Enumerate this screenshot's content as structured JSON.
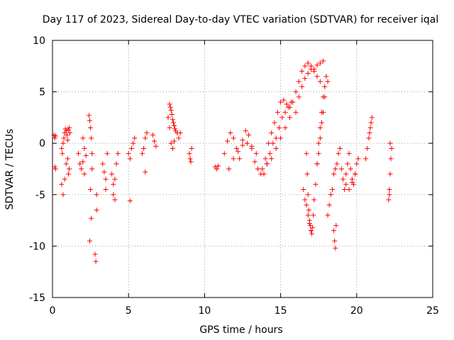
{
  "chart_data": {
    "type": "scatter",
    "title": "Day 117 of 2023, Sidereal Day-to-day VTEC variation (SDTVAR) for receiver iqal",
    "xlabel": "GPS time / hours",
    "ylabel": "SDTVAR / TECUs",
    "xlim": [
      0,
      25
    ],
    "ylim": [
      -15,
      10
    ],
    "xticks": [
      0,
      5,
      10,
      15,
      20,
      25
    ],
    "xtick_labels": [
      "0",
      "5",
      "10",
      "15",
      "20",
      "25"
    ],
    "yticks": [
      -15,
      -10,
      -5,
      0,
      5,
      10
    ],
    "ytick_labels": [
      "-15",
      "-10",
      "-5",
      "0",
      "5",
      "10"
    ],
    "grid": true,
    "marker": "plus",
    "color": "#ff0000",
    "series": [
      {
        "name": "SDTVAR",
        "x": [
          0.1,
          0.15,
          0.15,
          0.2,
          0.2,
          0.6,
          0.65,
          0.7,
          0.75,
          0.8,
          0.85,
          0.9,
          0.95,
          1.0,
          1.05,
          1.1,
          1.15,
          0.6,
          0.7,
          0.8,
          0.9,
          1.0,
          1.05,
          1.1,
          1.7,
          1.8,
          1.9,
          2.0,
          2.1,
          2.2,
          2.0,
          2.1,
          2.4,
          2.45,
          2.5,
          2.55,
          2.6,
          2.6,
          2.5,
          2.55,
          2.45,
          2.8,
          2.85,
          2.9,
          2.9,
          3.3,
          3.4,
          3.5,
          3.6,
          3.5,
          3.9,
          4.0,
          4.1,
          4.2,
          4.3,
          4.0,
          4.1,
          5.0,
          5.1,
          5.2,
          5.3,
          5.4,
          5.1,
          5.9,
          6.0,
          6.1,
          6.2,
          6.1,
          6.6,
          6.7,
          6.8,
          7.6,
          7.7,
          7.75,
          7.8,
          7.85,
          7.9,
          7.95,
          8.0,
          8.05,
          8.1,
          8.2,
          8.3,
          8.4,
          7.7,
          7.8,
          7.9,
          8.0,
          9.0,
          9.05,
          9.1,
          9.15,
          10.7,
          10.8,
          10.9,
          11.3,
          11.5,
          11.7,
          11.9,
          12.1,
          12.3,
          12.5,
          12.7,
          12.9,
          13.1,
          13.3,
          13.5,
          13.7,
          11.6,
          11.9,
          12.2,
          12.5,
          12.8,
          13.1,
          13.4,
          13.8,
          14.0,
          14.2,
          14.4,
          14.6,
          14.8,
          15.0,
          15.2,
          15.4,
          15.6,
          13.9,
          14.1,
          14.3,
          14.5,
          14.7,
          14.9,
          15.1,
          15.3,
          15.5,
          15.7,
          14.1,
          14.4,
          14.7,
          15.0,
          15.3,
          15.6,
          15.8,
          16.0,
          16.2,
          16.4,
          16.6,
          16.8,
          17.0,
          17.2,
          17.4,
          17.6,
          17.8,
          16.0,
          16.2,
          16.4,
          16.6,
          16.8,
          17.0,
          17.2,
          17.4,
          17.6,
          16.7,
          16.75,
          16.8,
          16.85,
          16.9,
          16.95,
          17.0,
          17.05,
          17.1,
          17.15,
          17.2,
          16.5,
          16.6,
          16.7,
          16.8,
          16.9,
          17.0,
          17.3,
          17.4,
          17.5,
          17.6,
          17.7,
          17.8,
          17.9,
          18.0,
          18.1,
          17.4,
          17.5,
          17.6,
          17.7,
          17.8,
          17.9,
          18.1,
          18.2,
          18.3,
          18.4,
          18.5,
          18.6,
          18.7,
          18.8,
          18.9,
          18.5,
          18.55,
          18.6,
          18.65,
          19.0,
          19.1,
          19.2,
          19.3,
          19.4,
          19.5,
          19.6,
          19.7,
          19.8,
          19.9,
          20.0,
          20.1,
          19.3,
          19.5,
          19.7,
          19.9,
          20.6,
          20.7,
          20.8,
          20.85,
          20.9,
          20.95,
          21.0,
          22.1,
          22.15,
          22.2,
          22.25,
          22.3,
          22.2,
          22.15
        ],
        "y": [
          0.8,
          0.5,
          -2.3,
          -2.5,
          0.7,
          -0.5,
          -1.0,
          0.0,
          0.5,
          1.0,
          1.4,
          1.2,
          0.8,
          0.3,
          1.3,
          1.5,
          1.0,
          -4.0,
          -5.0,
          -3.5,
          -2.0,
          -1.5,
          -3.0,
          -2.5,
          -1.0,
          -2.0,
          -2.5,
          -1.8,
          -0.5,
          -1.2,
          0.5,
          -3.0,
          2.7,
          2.2,
          1.5,
          0.5,
          -1.0,
          -2.5,
          -4.5,
          -7.3,
          -9.5,
          -10.8,
          -11.5,
          -6.5,
          -5.0,
          -2.0,
          -2.8,
          -3.5,
          -1.0,
          -4.5,
          -3.0,
          -4.0,
          -5.5,
          -2.0,
          -1.0,
          -5.0,
          -3.5,
          -1.0,
          -1.5,
          -0.5,
          0.0,
          0.5,
          -5.6,
          -1.0,
          -0.5,
          0.5,
          1.0,
          -2.8,
          0.8,
          0.2,
          -0.3,
          2.5,
          3.8,
          3.5,
          3.2,
          2.8,
          2.3,
          2.0,
          1.7,
          1.4,
          1.2,
          1.0,
          0.5,
          1.0,
          1.5,
          0.0,
          -0.5,
          0.2,
          -1.0,
          -1.5,
          -1.8,
          -0.5,
          -2.3,
          -2.5,
          -2.2,
          -1.0,
          0.2,
          1.0,
          0.5,
          -0.5,
          -1.5,
          0.3,
          1.2,
          0.8,
          -0.5,
          -1.8,
          -2.5,
          -3.0,
          -2.5,
          -1.5,
          -0.8,
          -0.2,
          0.0,
          -0.3,
          -1.0,
          -2.5,
          -1.5,
          0.0,
          1.0,
          2.0,
          3.0,
          4.0,
          4.2,
          3.8,
          3.5,
          -3.0,
          -2.0,
          -1.0,
          0.0,
          0.5,
          1.5,
          2.5,
          3.0,
          3.5,
          4.0,
          -2.0,
          -1.5,
          -0.5,
          0.5,
          1.5,
          2.5,
          4.0,
          5.0,
          6.0,
          7.0,
          7.5,
          7.8,
          7.5,
          7.2,
          7.6,
          7.8,
          8.0,
          3.0,
          4.5,
          5.5,
          6.3,
          6.8,
          7.2,
          7.0,
          6.5,
          6.0,
          -1.0,
          -3.0,
          -5.0,
          -6.5,
          -7.5,
          -8.0,
          -8.5,
          -8.8,
          -8.2,
          -7.0,
          -5.5,
          -4.5,
          -5.5,
          -6.0,
          -7.0,
          -7.8,
          -8.5,
          -4.0,
          -2.0,
          0.0,
          1.5,
          3.0,
          4.5,
          5.5,
          6.5,
          6.0,
          -2.0,
          -1.0,
          0.5,
          2.0,
          3.0,
          4.5,
          -7.0,
          -6.0,
          -5.0,
          -4.5,
          -3.0,
          -2.5,
          -2.0,
          -1.0,
          -0.5,
          -8.5,
          -9.5,
          -10.2,
          -8.0,
          -2.5,
          -3.5,
          -4.5,
          -3.0,
          -2.0,
          -1.0,
          -2.5,
          -3.5,
          -4.0,
          -3.0,
          -2.0,
          -1.5,
          -4.0,
          -4.5,
          -3.8,
          -3.0,
          -1.5,
          -0.5,
          0.5,
          1.0,
          1.5,
          2.0,
          2.5,
          -5.5,
          -4.5,
          -3.0,
          -1.5,
          -0.5,
          0.0,
          -5.0
        ]
      }
    ]
  }
}
